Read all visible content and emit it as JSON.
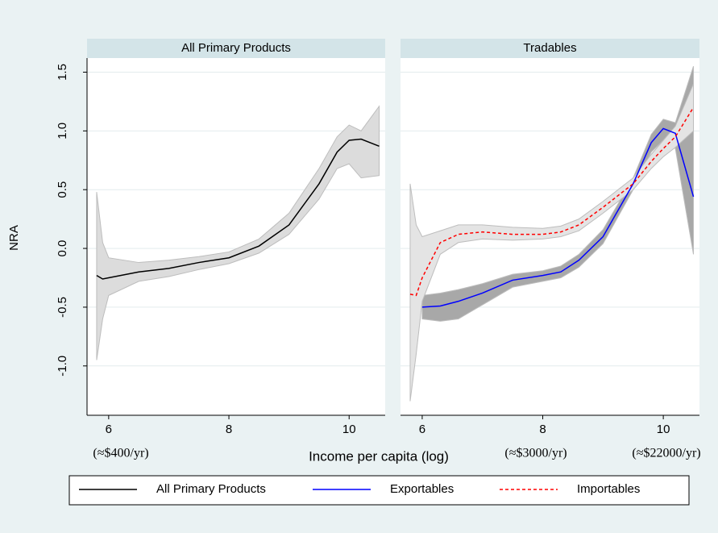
{
  "chart_data": [
    {
      "type": "line",
      "title": "All Primary Products",
      "x": [
        5.8,
        5.9,
        6.0,
        6.5,
        7.0,
        7.5,
        8.0,
        8.5,
        9.0,
        9.5,
        9.8,
        10.0,
        10.2,
        10.5
      ],
      "xlim": [
        5.64,
        10.6
      ],
      "xticks": [
        6,
        8,
        10
      ],
      "ylim": [
        -1.42,
        1.62
      ],
      "yticks": [
        {
          "value": -1,
          "label": "-1.0"
        },
        -0.5,
        {
          "value": 0,
          "label": "0.0"
        },
        0.5,
        {
          "value": 1,
          "label": "1.0"
        },
        1.5
      ],
      "grid": true,
      "series": [
        {
          "name": "All Primary Products",
          "color": "#000000",
          "band_color": "#dcdcdc",
          "values": [
            -0.23,
            -0.26,
            -0.25,
            -0.2,
            -0.17,
            -0.12,
            -0.08,
            0.02,
            0.2,
            0.55,
            0.82,
            0.92,
            0.93,
            0.87
          ],
          "lower": [
            -0.95,
            -0.6,
            -0.4,
            -0.28,
            -0.24,
            -0.18,
            -0.13,
            -0.04,
            0.12,
            0.42,
            0.68,
            0.72,
            0.6,
            0.62
          ],
          "upper": [
            0.48,
            0.05,
            -0.08,
            -0.12,
            -0.1,
            -0.07,
            -0.03,
            0.08,
            0.3,
            0.68,
            0.95,
            1.05,
            1.0,
            1.21
          ]
        }
      ]
    },
    {
      "type": "line",
      "title": "Tradables",
      "x": [
        5.8,
        5.9,
        6.0,
        6.3,
        6.6,
        7.0,
        7.5,
        8.0,
        8.3,
        8.6,
        9.0,
        9.5,
        9.8,
        10.0,
        10.2,
        10.5
      ],
      "xlim": [
        5.64,
        10.6
      ],
      "xticks": [
        6,
        8,
        10
      ],
      "ylim": [
        -1.42,
        1.62
      ],
      "grid": true,
      "series": [
        {
          "name": "Exportables",
          "color": "#0000ff",
          "band_color": "#a8a8a8",
          "values": [
            null,
            null,
            -0.5,
            -0.49,
            -0.45,
            -0.38,
            -0.27,
            -0.23,
            -0.2,
            -0.1,
            0.1,
            0.55,
            0.9,
            1.02,
            0.98,
            0.44
          ],
          "lower": [
            null,
            null,
            -0.6,
            -0.62,
            -0.6,
            -0.48,
            -0.33,
            -0.28,
            -0.25,
            -0.16,
            0.04,
            0.5,
            0.82,
            0.92,
            0.85,
            -0.05
          ],
          "upper": [
            null,
            null,
            -0.4,
            -0.38,
            -0.35,
            -0.3,
            -0.22,
            -0.19,
            -0.15,
            -0.05,
            0.16,
            0.6,
            0.97,
            1.1,
            1.07,
            1.55
          ]
        },
        {
          "name": "Importables",
          "color": "#ff0000",
          "band_color": "#e4e4e4",
          "dash": true,
          "values": [
            -0.39,
            -0.4,
            -0.25,
            0.05,
            0.12,
            0.14,
            0.12,
            0.12,
            0.14,
            0.2,
            0.35,
            0.55,
            0.74,
            0.85,
            0.95,
            1.2
          ],
          "lower": [
            -1.3,
            -0.9,
            -0.45,
            -0.05,
            0.05,
            0.08,
            0.07,
            0.08,
            0.1,
            0.15,
            0.3,
            0.5,
            0.68,
            0.78,
            0.86,
            1.0
          ],
          "upper": [
            0.55,
            0.2,
            0.1,
            0.15,
            0.2,
            0.2,
            0.18,
            0.17,
            0.19,
            0.25,
            0.4,
            0.6,
            0.8,
            0.92,
            1.04,
            1.4
          ]
        }
      ]
    }
  ],
  "x_label": "Income per capita (log)",
  "y_label": "NRA",
  "annotations": [
    "(≈$400/yr)",
    "(≈$3000/yr)",
    "(≈$22000/yr)"
  ]
}
